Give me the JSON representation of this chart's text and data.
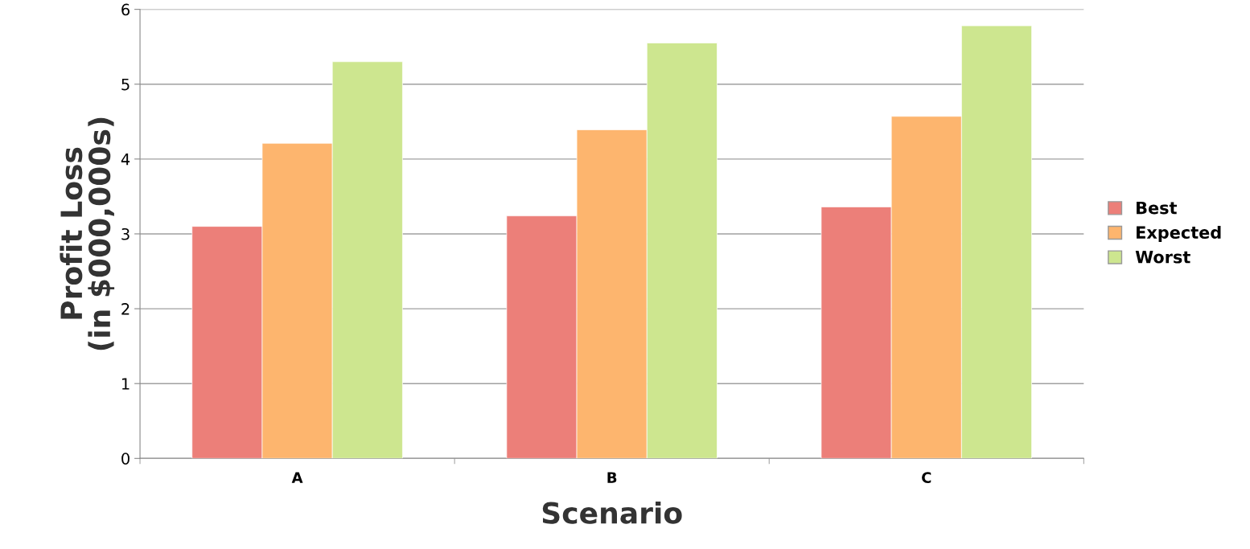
{
  "chart_data": {
    "type": "bar",
    "xlabel": "Scenario",
    "ylabel": "Profit Loss\n(in $000,000s)",
    "categories": [
      "A",
      "B",
      "C"
    ],
    "series": [
      {
        "name": "Best",
        "color": "#ec7f79",
        "values": [
          3.1,
          3.24,
          3.36
        ]
      },
      {
        "name": "Expected",
        "color": "#fdb56e",
        "values": [
          4.21,
          4.39,
          4.57
        ]
      },
      {
        "name": "Worst",
        "color": "#cde68f",
        "values": [
          5.3,
          5.55,
          5.78
        ]
      }
    ],
    "ylim": [
      0,
      6
    ],
    "yticks": [
      0,
      1,
      2,
      3,
      4,
      5,
      6
    ],
    "grid": "y",
    "legend": "right"
  }
}
